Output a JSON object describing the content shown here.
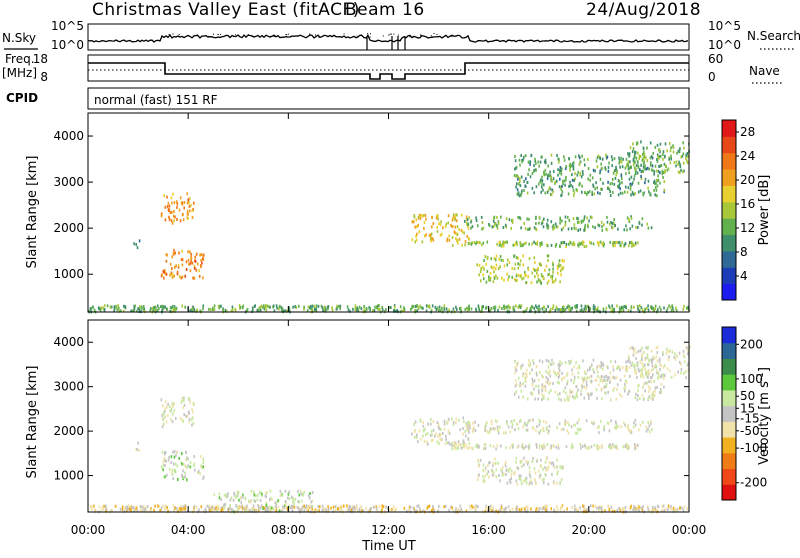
{
  "header": {
    "station": "Christmas Valley East (fitACF)",
    "beam": "Beam 16",
    "date": "24/Aug/2018"
  },
  "strip_panels": {
    "noise_left_label": "N.Sky",
    "noise_right_label": "N.Search",
    "noise_ticks": [
      "10^5",
      "10^0"
    ],
    "freq_label_line1": "Freq.",
    "freq_label_line2": "[MHz]",
    "freq_ticks": [
      "18",
      "8"
    ],
    "nave_label": "Nave",
    "nave_ticks": [
      "60",
      "0"
    ],
    "cpid_label": "CPID",
    "cpid_value": "normal (fast) 151 RF"
  },
  "colors": {
    "power_scale": [
      "#1c1cf0",
      "#1c3cb8",
      "#2f6a96",
      "#3f8f6c",
      "#62b14e",
      "#a8c83a",
      "#e8d030",
      "#f0a020",
      "#f07818",
      "#e84818",
      "#e01818"
    ],
    "velocity_scale": [
      "#e01010",
      "#f04818",
      "#f07c18",
      "#f0b020",
      "#f0e2a8",
      "#c4c4c4",
      "#c8e8a0",
      "#5cc83c",
      "#3c8c4c",
      "#2c6896",
      "#1c2cd8"
    ]
  },
  "chart_data": [
    {
      "type": "heatmap",
      "name": "power",
      "xlabel": "Time UT",
      "ylabel": "Slant Range [km]",
      "x_ticks": [
        "00:00",
        "04:00",
        "08:00",
        "12:00",
        "16:00",
        "20:00",
        "00:00"
      ],
      "xlim_hours": [
        0,
        24
      ],
      "y_ticks": [
        1000,
        2000,
        3000,
        4000
      ],
      "ylim_km": [
        180,
        4500
      ],
      "colorbar": {
        "label": "Power [dB]",
        "ticks": [
          4,
          8,
          12,
          16,
          20,
          24,
          28
        ],
        "range": [
          0,
          30
        ]
      },
      "echo_regions": [
        {
          "t0": 2.9,
          "t1": 4.2,
          "r0": 2100,
          "r1": 2750,
          "value": 21
        },
        {
          "t0": 2.9,
          "t1": 4.6,
          "r0": 900,
          "r1": 1550,
          "value": 22
        },
        {
          "t0": 1.8,
          "t1": 2.1,
          "r0": 1550,
          "r1": 1750,
          "value": 8
        },
        {
          "t0": 0.0,
          "t1": 24.0,
          "r0": 180,
          "r1": 320,
          "value": 12
        },
        {
          "t0": 12.9,
          "t1": 15.2,
          "r0": 1700,
          "r1": 2300,
          "value": 18
        },
        {
          "t0": 14.5,
          "t1": 22.0,
          "r0": 1600,
          "r1": 1700,
          "value": 14
        },
        {
          "t0": 15.0,
          "t1": 22.5,
          "r0": 1950,
          "r1": 2250,
          "value": 12
        },
        {
          "t0": 15.5,
          "t1": 19.0,
          "r0": 800,
          "r1": 1400,
          "value": 15
        },
        {
          "t0": 17.0,
          "t1": 23.0,
          "r0": 2700,
          "r1": 3600,
          "value": 11
        },
        {
          "t0": 21.5,
          "t1": 24.0,
          "r0": 3200,
          "r1": 3900,
          "value": 12
        }
      ]
    },
    {
      "type": "heatmap",
      "name": "velocity",
      "xlabel": "Time UT",
      "ylabel": "Slant Range [km]",
      "x_ticks": [
        "00:00",
        "04:00",
        "08:00",
        "12:00",
        "16:00",
        "20:00",
        "00:00"
      ],
      "xlim_hours": [
        0,
        24
      ],
      "y_ticks": [
        1000,
        2000,
        3000,
        4000
      ],
      "ylim_km": [
        180,
        4500
      ],
      "colorbar": {
        "label": "Velocity [m s-1]",
        "ticks": [
          200,
          100,
          50,
          15,
          -15,
          -50,
          -100,
          -200
        ],
        "range": [
          -250,
          250
        ]
      },
      "echo_regions": [
        {
          "t0": 2.9,
          "t1": 4.2,
          "r0": 2100,
          "r1": 2750,
          "value": 0
        },
        {
          "t0": 2.9,
          "t1": 4.6,
          "r0": 900,
          "r1": 1550,
          "value": 30
        },
        {
          "t0": 1.8,
          "t1": 2.1,
          "r0": 1550,
          "r1": 1750,
          "value": 0
        },
        {
          "t0": 0.0,
          "t1": 24.0,
          "r0": 180,
          "r1": 320,
          "value": -40
        },
        {
          "t0": 5.0,
          "t1": 9.0,
          "r0": 180,
          "r1": 650,
          "value": 20
        },
        {
          "t0": 12.9,
          "t1": 15.2,
          "r0": 1700,
          "r1": 2300,
          "value": 0
        },
        {
          "t0": 14.5,
          "t1": 22.0,
          "r0": 1600,
          "r1": 1700,
          "value": 0
        },
        {
          "t0": 15.0,
          "t1": 22.5,
          "r0": 1950,
          "r1": 2250,
          "value": 0
        },
        {
          "t0": 15.5,
          "t1": 19.0,
          "r0": 800,
          "r1": 1400,
          "value": 0
        },
        {
          "t0": 17.0,
          "t1": 23.0,
          "r0": 2700,
          "r1": 3600,
          "value": 0
        },
        {
          "t0": 21.5,
          "t1": 24.0,
          "r0": 3200,
          "r1": 3900,
          "value": 0
        }
      ]
    }
  ]
}
